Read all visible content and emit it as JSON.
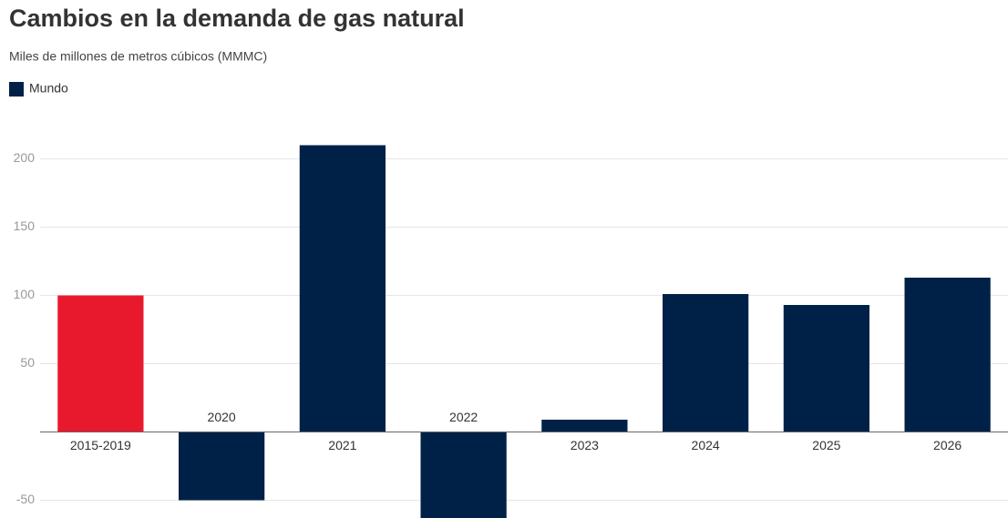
{
  "chart_data": {
    "type": "bar",
    "title": "Cambios en la demanda de gas natural",
    "subtitle": "Miles de millones de metros cúbicos (MMMC)",
    "categories": [
      "2015-2019",
      "2020",
      "2021",
      "2022",
      "2023",
      "2024",
      "2025",
      "2026"
    ],
    "series": [
      {
        "name": "Mundo",
        "color": "#002147",
        "values": [
          100,
          -50,
          210,
          -63,
          9,
          101,
          93,
          113
        ],
        "colors": [
          "#e8192c",
          "#002147",
          "#002147",
          "#002147",
          "#002147",
          "#002147",
          "#002147",
          "#002147"
        ]
      }
    ],
    "ylim": [
      -63,
      223
    ],
    "yticks": [
      -50,
      50,
      100,
      150,
      200
    ],
    "grid": true,
    "legend": "top-left"
  }
}
